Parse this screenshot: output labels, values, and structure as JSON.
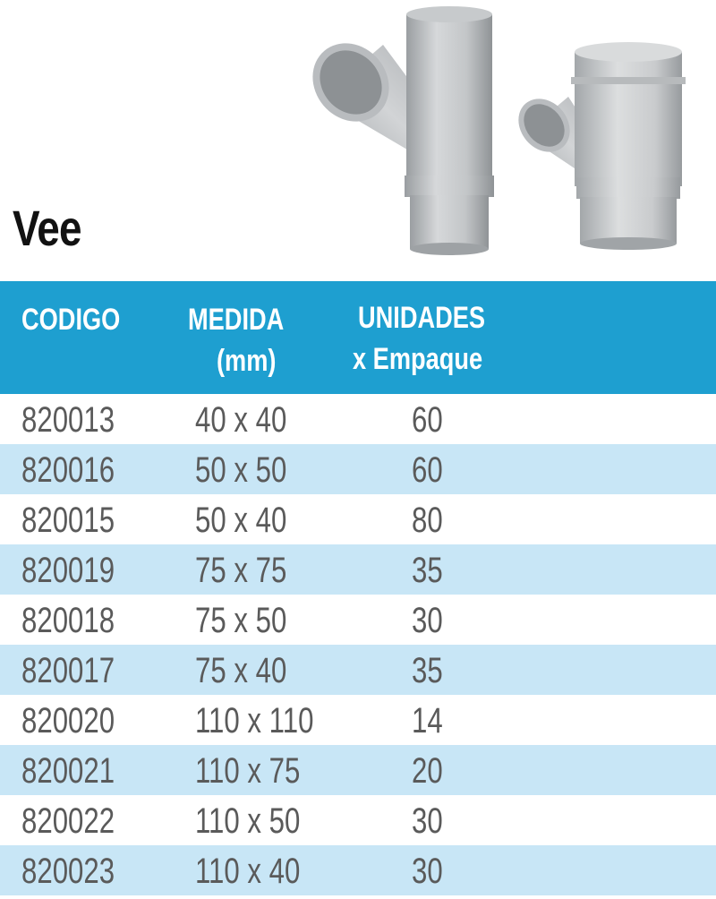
{
  "title": "Vee",
  "table": {
    "headers": {
      "codigo": "CODIGO",
      "medida_line1": "MEDIDA",
      "medida_line2": "(mm)",
      "unidades_line1": "UNIDADES",
      "unidades_line2": "x Empaque"
    },
    "rows": [
      {
        "codigo": "820013",
        "medida": "40 x 40",
        "unidades": "60"
      },
      {
        "codigo": "820016",
        "medida": "50 x 50",
        "unidades": "60"
      },
      {
        "codigo": "820015",
        "medida": "50 x 40",
        "unidades": "80"
      },
      {
        "codigo": "820019",
        "medida": "75 x 75",
        "unidades": "35"
      },
      {
        "codigo": "820018",
        "medida": "75 x 50",
        "unidades": "30"
      },
      {
        "codigo": "820017",
        "medida": "75 x 40",
        "unidades": "35"
      },
      {
        "codigo": "820020",
        "medida": "110 x 110",
        "unidades": "14"
      },
      {
        "codigo": "820021",
        "medida": "110 x 75",
        "unidades": "20"
      },
      {
        "codigo": "820022",
        "medida": "110 x 50",
        "unidades": "30"
      },
      {
        "codigo": "820023",
        "medida": "110 x 40",
        "unidades": "30"
      }
    ]
  },
  "colors": {
    "header_bg": "#1e9fd0",
    "alt_row_bg": "#c8e6f6",
    "text": "#5a5a5a",
    "pipe_gray": "#bfc2c4"
  },
  "images": [
    "vee-fitting-equal-image",
    "vee-fitting-reduced-image"
  ]
}
